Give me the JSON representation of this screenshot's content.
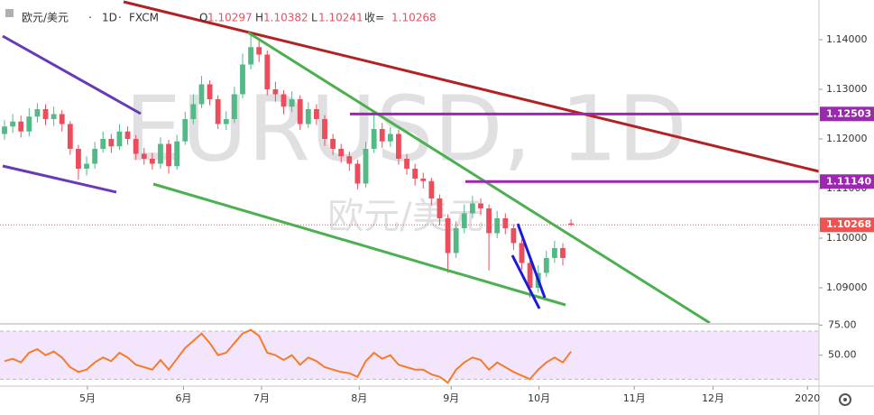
{
  "chart_data": {
    "type": "candlestick",
    "header": {
      "symbol": "欧元/美元",
      "interval": "1D",
      "source": "FXCM",
      "ohlc_labels": [
        "O",
        "H",
        "L",
        "收="
      ]
    },
    "watermark": "EURUSD, 1D",
    "watermark_sub": "欧元/美元",
    "up_color": "#53b987",
    "down_color": "#eb4d5c",
    "open": [
      1.121,
      1.1225,
      1.1235,
      1.1215,
      1.1245,
      1.126,
      1.124,
      1.125,
      1.123,
      1.118,
      1.114,
      1.115,
      1.118,
      1.12,
      1.1185,
      1.1215,
      1.12,
      1.117,
      1.116,
      1.115,
      1.119,
      1.1145,
      1.1195,
      1.124,
      1.127,
      1.131,
      1.128,
      1.123,
      1.124,
      1.129,
      1.135,
      1.1385,
      1.137,
      1.13,
      1.129,
      1.1265,
      1.128,
      1.123,
      1.126,
      1.124,
      1.12,
      1.118,
      1.1165,
      1.115,
      1.111,
      1.118,
      1.122,
      1.1195,
      1.121,
      1.116,
      1.114,
      1.112,
      1.1115,
      1.108,
      1.104,
      1.097,
      1.102,
      1.105,
      1.107,
      1.106,
      1.101,
      1.104,
      1.102,
      1.099,
      1.095,
      1.09,
      1.093,
      1.096,
      1.098,
      1.10297
    ],
    "high": [
      1.1238,
      1.125,
      1.1247,
      1.1262,
      1.1272,
      1.127,
      1.1265,
      1.1258,
      1.1236,
      1.1188,
      1.1165,
      1.1194,
      1.1215,
      1.121,
      1.123,
      1.1225,
      1.1208,
      1.1182,
      1.1172,
      1.1203,
      1.1198,
      1.1208,
      1.1255,
      1.129,
      1.1327,
      1.1318,
      1.1288,
      1.1256,
      1.1305,
      1.1372,
      1.1412,
      1.1398,
      1.1378,
      1.1315,
      1.1298,
      1.1296,
      1.1288,
      1.1274,
      1.127,
      1.1248,
      1.121,
      1.119,
      1.1175,
      1.1158,
      1.1194,
      1.125,
      1.1232,
      1.1224,
      1.1218,
      1.117,
      1.115,
      1.1132,
      1.1122,
      1.1088,
      1.1048,
      1.1034,
      1.1068,
      1.1085,
      1.108,
      1.1068,
      1.1055,
      1.105,
      1.1028,
      1.0998,
      1.0958,
      1.0945,
      1.0975,
      1.0995,
      1.099,
      1.10382
    ],
    "low": [
      1.1198,
      1.1212,
      1.1203,
      1.1205,
      1.1233,
      1.1228,
      1.1226,
      1.1215,
      1.1168,
      1.1118,
      1.1126,
      1.114,
      1.1172,
      1.1172,
      1.1178,
      1.1188,
      1.1158,
      1.1148,
      1.1138,
      1.114,
      1.113,
      1.1138,
      1.1188,
      1.123,
      1.1262,
      1.1268,
      1.122,
      1.1218,
      1.1232,
      1.1282,
      1.134,
      1.1355,
      1.1288,
      1.1275,
      1.125,
      1.1254,
      1.1218,
      1.1222,
      1.1228,
      1.1186,
      1.1168,
      1.1152,
      1.1136,
      1.1098,
      1.1102,
      1.1172,
      1.1182,
      1.1184,
      1.1148,
      1.1128,
      1.1106,
      1.11,
      1.1066,
      1.1026,
      1.093,
      1.096,
      1.101,
      1.104,
      1.1046,
      1.0935,
      1.1,
      1.1008,
      1.0976,
      1.0936,
      1.088,
      1.089,
      1.0922,
      1.095,
      1.0945,
      1.10241
    ],
    "close": [
      1.1225,
      1.1235,
      1.1215,
      1.1245,
      1.126,
      1.124,
      1.125,
      1.123,
      1.118,
      1.114,
      1.115,
      1.118,
      1.12,
      1.1185,
      1.1215,
      1.12,
      1.117,
      1.116,
      1.115,
      1.119,
      1.1145,
      1.1195,
      1.124,
      1.127,
      1.131,
      1.128,
      1.123,
      1.124,
      1.129,
      1.135,
      1.1385,
      1.137,
      1.13,
      1.129,
      1.1265,
      1.128,
      1.123,
      1.126,
      1.124,
      1.12,
      1.118,
      1.1165,
      1.115,
      1.111,
      1.118,
      1.122,
      1.1195,
      1.121,
      1.116,
      1.114,
      1.112,
      1.1115,
      1.108,
      1.104,
      1.097,
      1.102,
      1.105,
      1.107,
      1.106,
      1.101,
      1.104,
      1.102,
      1.099,
      1.095,
      1.09,
      1.093,
      1.096,
      1.098,
      1.096,
      1.10268
    ],
    "xlim": [
      -0.55,
      99.2
    ],
    "xticks": [
      {
        "value": 10.1,
        "label": "5月"
      },
      {
        "value": 21.8,
        "label": "6月"
      },
      {
        "value": 31.3,
        "label": "7月"
      },
      {
        "value": 43.2,
        "label": "8月"
      },
      {
        "value": 54.4,
        "label": "9月"
      },
      {
        "value": 65.1,
        "label": "10月"
      },
      {
        "value": 76.7,
        "label": "11月"
      },
      {
        "value": 86.3,
        "label": "12月"
      },
      {
        "value": 97.8,
        "label": "2020"
      }
    ],
    "ylim": [
      1.0829,
      1.148
    ],
    "yticks": [
      {
        "value": 1.09,
        "label": "1.09000"
      },
      {
        "value": 1.1,
        "label": "1.10000"
      },
      {
        "value": 1.11,
        "label": "1.11000"
      },
      {
        "value": 1.12,
        "label": "1.12000"
      },
      {
        "value": 1.13,
        "label": "1.13000"
      },
      {
        "value": 1.14,
        "label": "1.14000"
      }
    ],
    "price_labels": [
      {
        "value": 1.12503,
        "label": "1.12503",
        "color": "#9c27b0"
      },
      {
        "value": 1.1114,
        "label": "1.11140",
        "color": "#9c27b0"
      },
      {
        "value": 1.10268,
        "label": "1.10268",
        "color": "#ef5350"
      }
    ],
    "grid": false,
    "rsi": {
      "color": "#f57c2b",
      "values": [
        45,
        47,
        44,
        52,
        55,
        50,
        53,
        48,
        40,
        36,
        38,
        44,
        48,
        45,
        52,
        48,
        42,
        40,
        38,
        46,
        38,
        47,
        56,
        62,
        68,
        60,
        50,
        52,
        60,
        68,
        71,
        66,
        52,
        50,
        46,
        50,
        42,
        48,
        45,
        40,
        38,
        36,
        35,
        32,
        45,
        52,
        47,
        50,
        42,
        40,
        38,
        38,
        34,
        32,
        27,
        38,
        44,
        48,
        46,
        38,
        44,
        40,
        36,
        33,
        30,
        38,
        44,
        48,
        44,
        53
      ],
      "ylim": [
        25,
        76
      ],
      "yticks": [
        {
          "value": 75,
          "label": "75.00"
        },
        {
          "value": 50,
          "label": "50.00"
        }
      ],
      "bands": [
        30,
        70
      ]
    }
  }
}
